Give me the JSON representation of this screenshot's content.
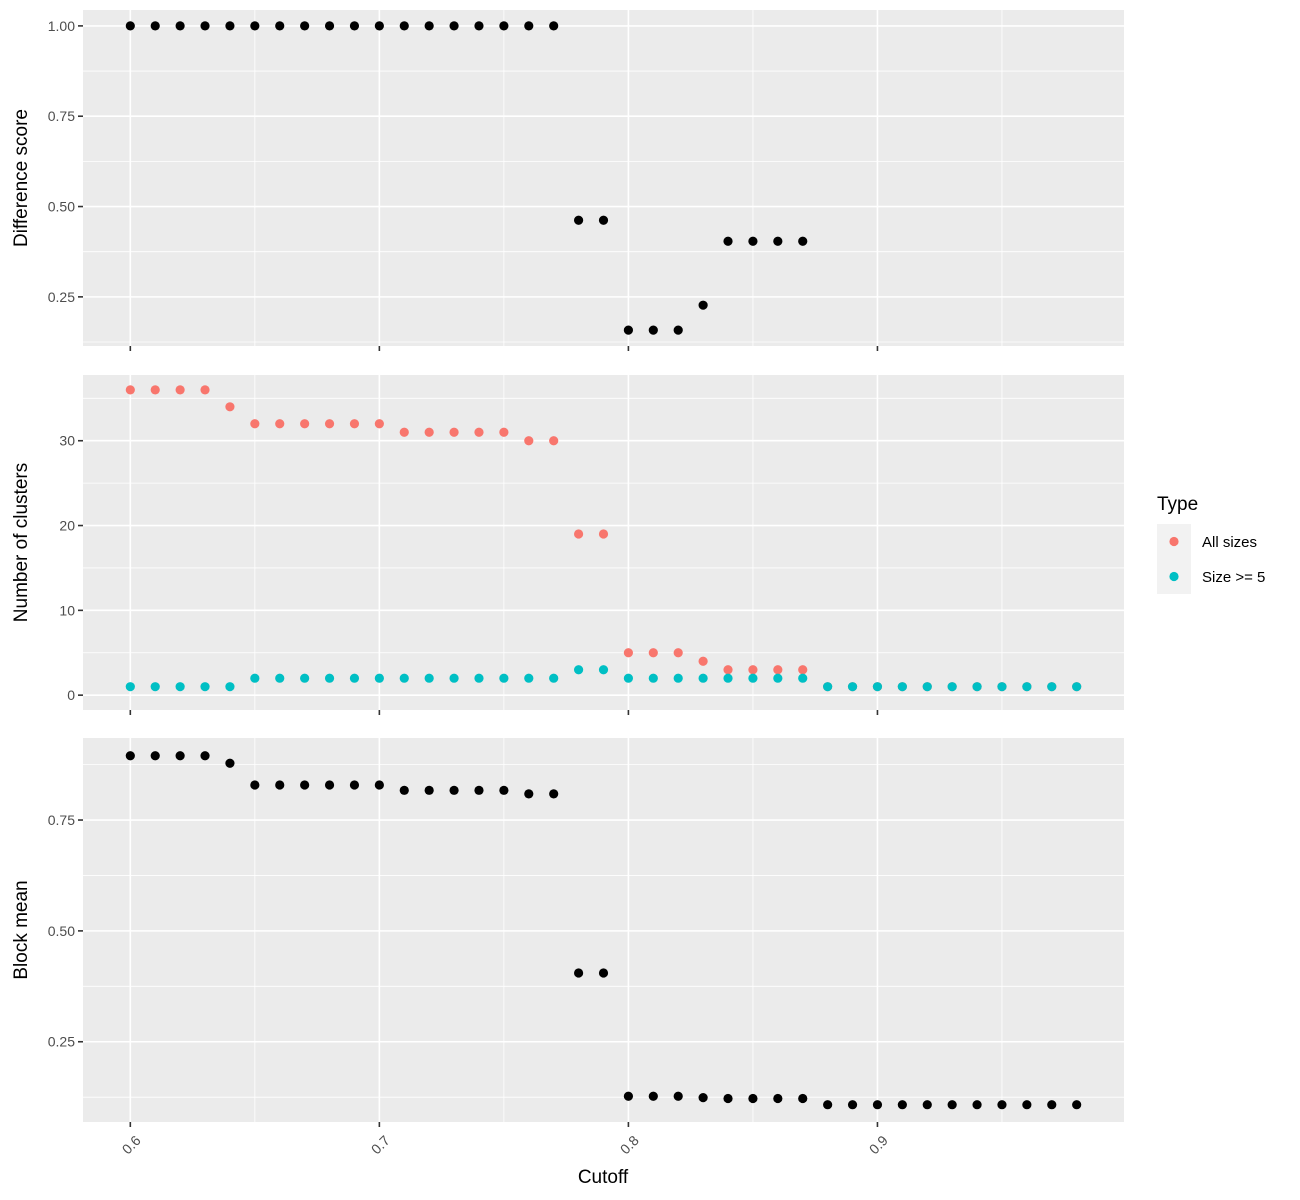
{
  "chart_data": {
    "type": "scatter",
    "xlabel": "Cutoff",
    "x_ticks": [
      "0.6",
      "0.7",
      "0.8",
      "0.9"
    ],
    "xlim": [
      0.581,
      0.999
    ],
    "legend": {
      "title": "Type",
      "placement": "right",
      "entries": [
        {
          "label": "All sizes",
          "color": "#F8766D"
        },
        {
          "label": "Size >= 5",
          "color": "#00BFC4"
        }
      ]
    },
    "panels": [
      {
        "ylabel": "Difference score",
        "ylim": [
          0.114,
          1.044
        ],
        "y_ticks": [
          {
            "value": 0.25,
            "label": "0.25"
          },
          {
            "value": 0.5,
            "label": "0.50"
          },
          {
            "value": 0.75,
            "label": "0.75"
          },
          {
            "value": 1.0,
            "label": "1.00"
          }
        ],
        "series": [
          {
            "color": "#000000",
            "x": [
              0.6,
              0.61,
              0.62,
              0.63,
              0.64,
              0.65,
              0.66,
              0.67,
              0.68,
              0.69,
              0.7,
              0.71,
              0.72,
              0.73,
              0.74,
              0.75,
              0.76,
              0.77,
              0.78,
              0.79,
              0.8,
              0.81,
              0.82,
              0.83,
              0.84,
              0.85,
              0.86,
              0.87
            ],
            "y": [
              1,
              1,
              1,
              1,
              1,
              1,
              1,
              1,
              1,
              1,
              1,
              1,
              1,
              1,
              1,
              1,
              1,
              1,
              0.462,
              0.462,
              0.158,
              0.158,
              0.158,
              0.227,
              0.404,
              0.404,
              0.404,
              0.404
            ]
          }
        ]
      },
      {
        "ylabel": "Number of clusters",
        "ylim": [
          -1.75,
          37.75
        ],
        "y_ticks": [
          {
            "value": 0,
            "label": "0"
          },
          {
            "value": 10,
            "label": "10"
          },
          {
            "value": 20,
            "label": "20"
          },
          {
            "value": 30,
            "label": "30"
          }
        ],
        "series": [
          {
            "name": "All sizes",
            "color": "#F8766D",
            "x": [
              0.6,
              0.61,
              0.62,
              0.63,
              0.64,
              0.65,
              0.66,
              0.67,
              0.68,
              0.69,
              0.7,
              0.71,
              0.72,
              0.73,
              0.74,
              0.75,
              0.76,
              0.77,
              0.78,
              0.79,
              0.8,
              0.81,
              0.82,
              0.83,
              0.84,
              0.85,
              0.86,
              0.87,
              0.88,
              0.89,
              0.9,
              0.91,
              0.92,
              0.93,
              0.94,
              0.95,
              0.96,
              0.97,
              0.98
            ],
            "y": [
              36,
              36,
              36,
              36,
              34,
              32,
              32,
              32,
              32,
              32,
              32,
              31,
              31,
              31,
              31,
              31,
              30,
              30,
              19,
              19,
              5,
              5,
              5,
              4,
              3,
              3,
              3,
              3,
              1,
              1,
              1,
              1,
              1,
              1,
              1,
              1,
              1,
              1,
              1
            ]
          },
          {
            "name": "Size >= 5",
            "color": "#00BFC4",
            "x": [
              0.6,
              0.61,
              0.62,
              0.63,
              0.64,
              0.65,
              0.66,
              0.67,
              0.68,
              0.69,
              0.7,
              0.71,
              0.72,
              0.73,
              0.74,
              0.75,
              0.76,
              0.77,
              0.78,
              0.79,
              0.8,
              0.81,
              0.82,
              0.83,
              0.84,
              0.85,
              0.86,
              0.87,
              0.88,
              0.89,
              0.9,
              0.91,
              0.92,
              0.93,
              0.94,
              0.95,
              0.96,
              0.97,
              0.98
            ],
            "y": [
              1,
              1,
              1,
              1,
              1,
              2,
              2,
              2,
              2,
              2,
              2,
              2,
              2,
              2,
              2,
              2,
              2,
              2,
              3,
              3,
              2,
              2,
              2,
              2,
              2,
              2,
              2,
              2,
              1,
              1,
              1,
              1,
              1,
              1,
              1,
              1,
              1,
              1,
              1
            ]
          }
        ]
      },
      {
        "ylabel": "Block mean",
        "ylim": [
          0.069,
          0.935
        ],
        "y_ticks": [
          {
            "value": 0.25,
            "label": "0.25"
          },
          {
            "value": 0.5,
            "label": "0.50"
          },
          {
            "value": 0.75,
            "label": "0.75"
          }
        ],
        "series": [
          {
            "color": "#000000",
            "x": [
              0.6,
              0.61,
              0.62,
              0.63,
              0.64,
              0.65,
              0.66,
              0.67,
              0.68,
              0.69,
              0.7,
              0.71,
              0.72,
              0.73,
              0.74,
              0.75,
              0.76,
              0.77,
              0.78,
              0.79,
              0.8,
              0.81,
              0.82,
              0.83,
              0.84,
              0.85,
              0.86,
              0.87,
              0.88,
              0.89,
              0.9,
              0.91,
              0.92,
              0.93,
              0.94,
              0.95,
              0.96,
              0.97,
              0.98
            ],
            "y": [
              0.895,
              0.895,
              0.895,
              0.895,
              0.878,
              0.829,
              0.829,
              0.829,
              0.829,
              0.829,
              0.829,
              0.817,
              0.817,
              0.817,
              0.817,
              0.817,
              0.809,
              0.809,
              0.405,
              0.405,
              0.127,
              0.127,
              0.127,
              0.124,
              0.122,
              0.122,
              0.122,
              0.122,
              0.108,
              0.108,
              0.108,
              0.108,
              0.108,
              0.108,
              0.108,
              0.108,
              0.108,
              0.108,
              0.108
            ]
          }
        ]
      }
    ]
  }
}
